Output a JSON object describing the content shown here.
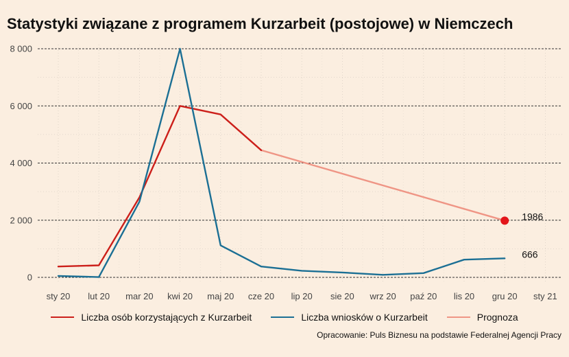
{
  "chart_data": {
    "type": "line",
    "title": "Statystyki związane z programem Kurzarbeit (postojowe) w Niemczech",
    "source": "Opracowanie: Puls Biznesu na podstawie Federalnej Agencji Pracy",
    "x_ticks": [
      "sty 20",
      "lut 20",
      "mar 20",
      "kwi 20",
      "maj 20",
      "cze 20",
      "lip 20",
      "sie 20",
      "wrz 20",
      "paź 20",
      "lis 20",
      "gru 20",
      "sty 21"
    ],
    "ylim": [
      0,
      8000
    ],
    "y_ticks": [
      0,
      2000,
      4000,
      6000,
      8000
    ],
    "y_tick_labels": [
      "0",
      "2 000",
      "4 000",
      "6 000",
      "8 000"
    ],
    "grid": {
      "major_y": "dashed",
      "minor": "dotted"
    },
    "legend_position": "bottom",
    "series": [
      {
        "name": "Liczba osób korzystających z Kurzarbeit",
        "color": "#cc1f1a",
        "x": [
          "sty 20",
          "lut 20",
          "mar 20",
          "kwi 20",
          "maj 20",
          "cze 20"
        ],
        "values": [
          380,
          420,
          2800,
          6000,
          5700,
          4450
        ]
      },
      {
        "name": "Liczba wniosków o Kurzarbeit",
        "color": "#1b6f94",
        "x": [
          "sty 20",
          "lut 20",
          "mar 20",
          "kwi 20",
          "maj 20",
          "cze 20",
          "lip 20",
          "sie 20",
          "wrz 20",
          "paź 20",
          "lis 20",
          "gru 20"
        ],
        "values": [
          50,
          10,
          2650,
          8000,
          1120,
          380,
          230,
          170,
          90,
          150,
          620,
          666
        ]
      },
      {
        "name": "Prognoza",
        "color": "#ef9585",
        "x": [
          "cze 20",
          "gru 20"
        ],
        "values": [
          4450,
          1986
        ]
      }
    ],
    "point_marker": {
      "x": "gru 20",
      "value": 1986,
      "color": "#e3161b"
    },
    "annotations": [
      {
        "x": "gru 20",
        "value": 1986,
        "text": "1986"
      },
      {
        "x": "gru 20",
        "value": 666,
        "text": "666"
      }
    ]
  }
}
